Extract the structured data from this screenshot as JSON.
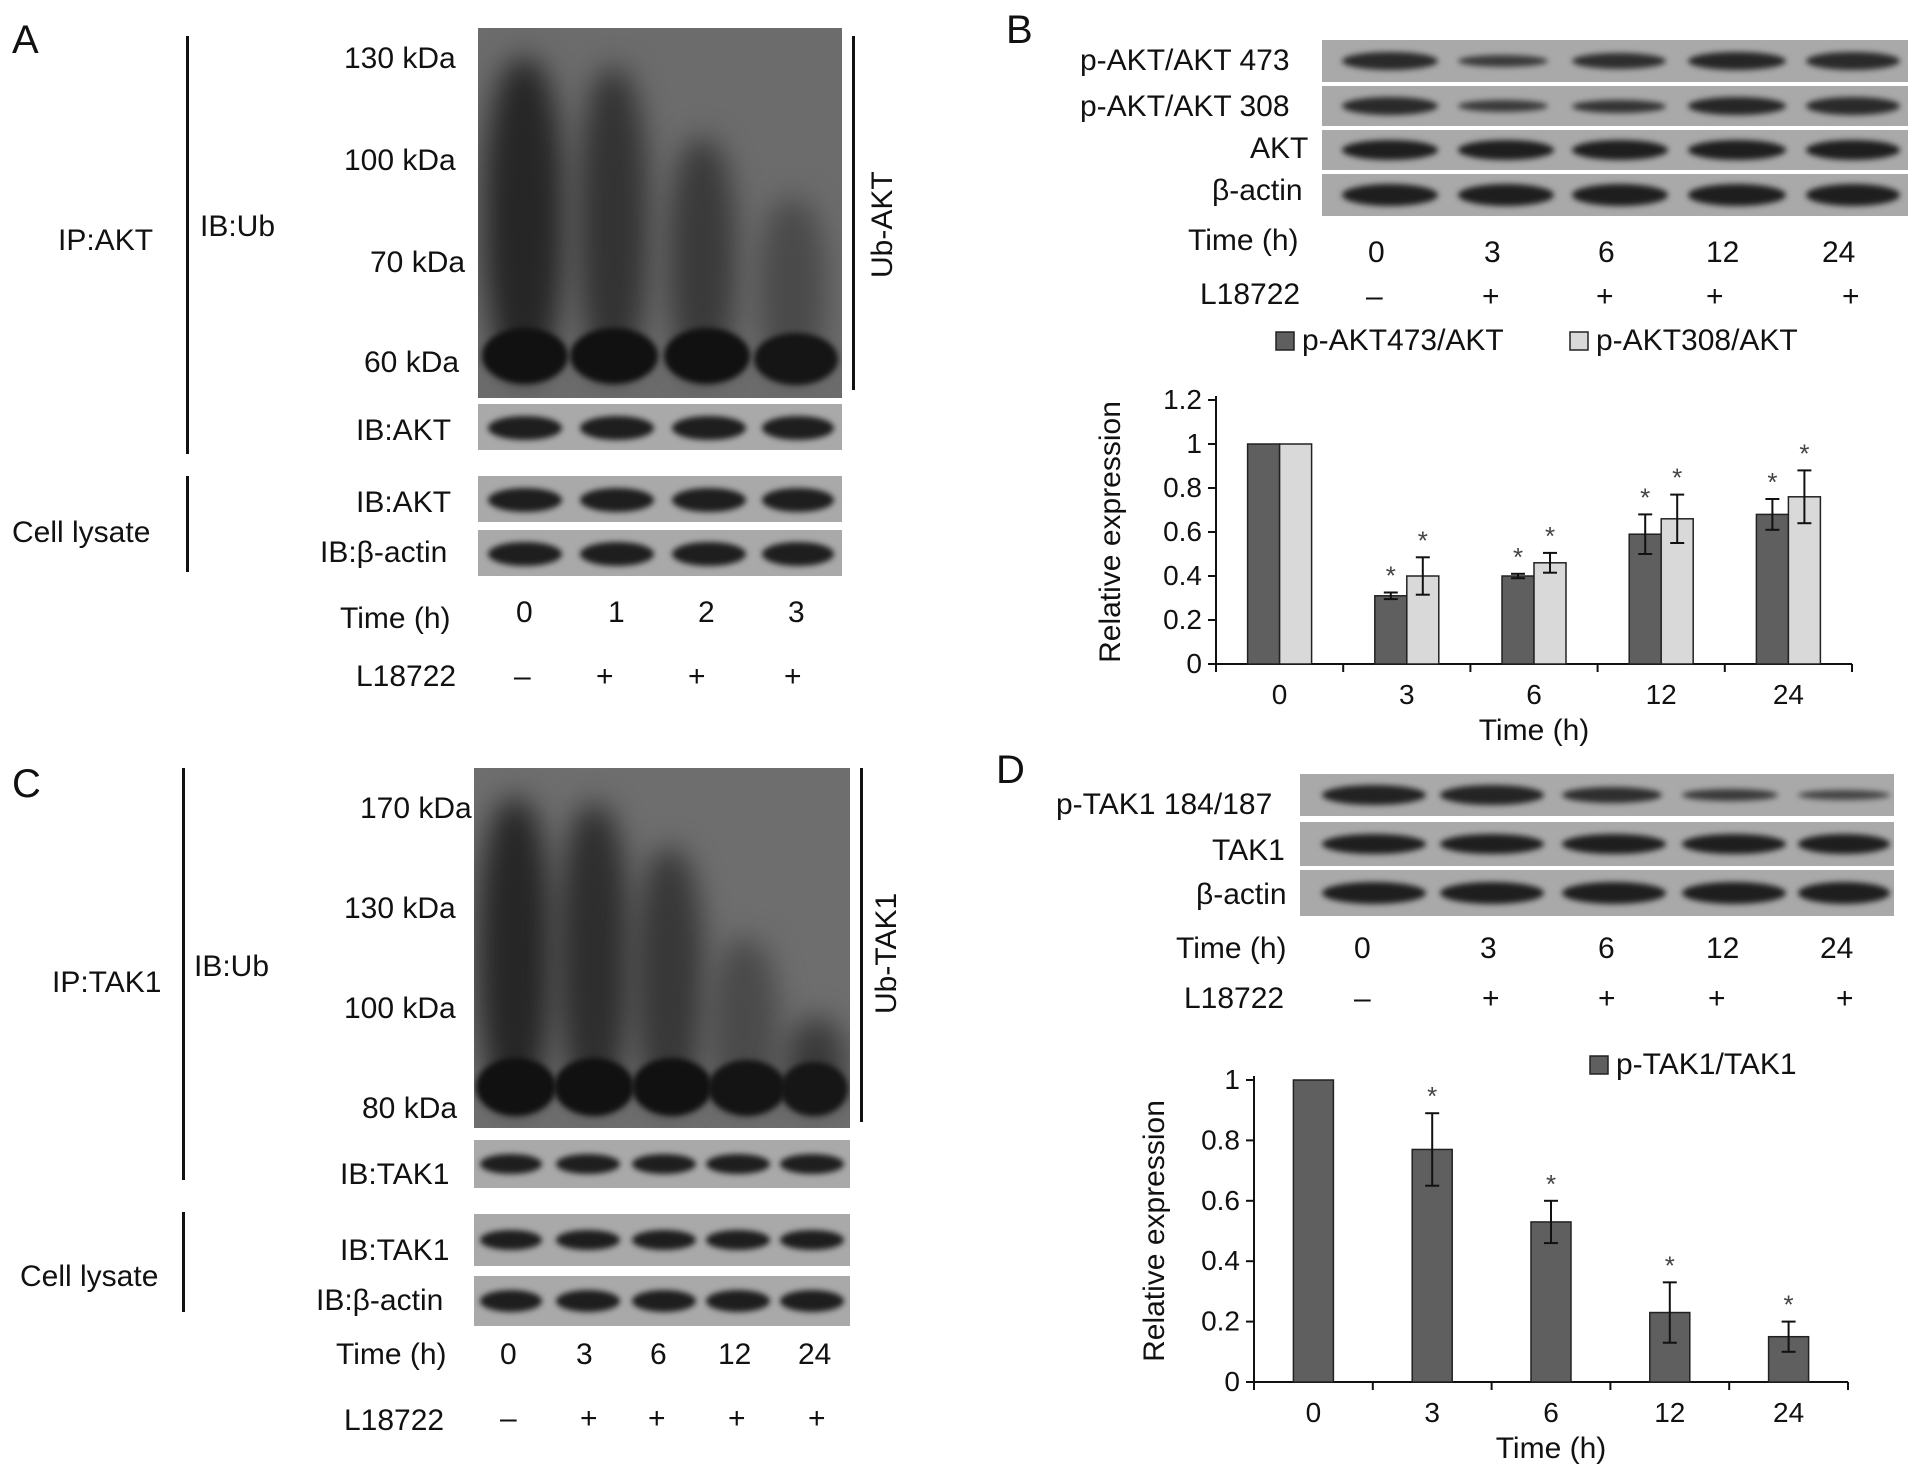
{
  "panels": {
    "A": {
      "letter": "A",
      "ip_label": "IP:AKT",
      "ib_ub_label": "IB:Ub",
      "ub_label": "Ub-AKT",
      "cell_lysate_label": "Cell lysate",
      "markers": [
        "130 kDa",
        "100 kDa",
        "70 kDa",
        "60 kDa"
      ],
      "blot_labels": [
        "IB:AKT",
        "IB:AKT",
        "IB:β-actin"
      ],
      "time_label": "Time (h)",
      "times": [
        "0",
        "1",
        "2",
        "3"
      ],
      "treatment_label": "L18722",
      "treatments": [
        "–",
        "+",
        "+",
        "+"
      ]
    },
    "B": {
      "letter": "B",
      "blot_labels": [
        "p-AKT/AKT 473",
        "p-AKT/AKT 308",
        "AKT",
        "β-actin"
      ],
      "time_label": "Time (h)",
      "times": [
        "0",
        "3",
        "6",
        "12",
        "24"
      ],
      "treatment_label": "L18722",
      "treatments": [
        "–",
        "+",
        "+",
        "+",
        "+"
      ]
    },
    "C": {
      "letter": "C",
      "ip_label": "IP:TAK1",
      "ib_ub_label": "IB:Ub",
      "ub_label": "Ub-TAK1",
      "cell_lysate_label": "Cell lysate",
      "markers": [
        "170 kDa",
        "130 kDa",
        "100 kDa",
        "80 kDa"
      ],
      "blot_labels": [
        "IB:TAK1",
        "IB:TAK1",
        "IB:β-actin"
      ],
      "time_label": "Time (h)",
      "times": [
        "0",
        "3",
        "6",
        "12",
        "24"
      ],
      "treatment_label": "L18722",
      "treatments": [
        "–",
        "+",
        "+",
        "+",
        "+"
      ]
    },
    "D": {
      "letter": "D",
      "blot_labels": [
        "p-TAK1 184/187",
        "TAK1",
        "β-actin"
      ],
      "time_label": "Time (h)",
      "times": [
        "0",
        "3",
        "6",
        "12",
        "24"
      ],
      "treatment_label": "L18722",
      "treatments": [
        "–",
        "+",
        "+",
        "+",
        "+"
      ]
    }
  },
  "colors": {
    "dark_bar": "#5f5f5f",
    "light_bar": "#d9d9d9",
    "blot_bg": "#a9a9a9",
    "band": "#1e1e1e"
  },
  "chart_data": [
    {
      "type": "bar",
      "title": "",
      "categories": [
        "0",
        "3",
        "6",
        "12",
        "24"
      ],
      "xlabel": "Time (h)",
      "ylabel": "Relative expression",
      "ylim": [
        0,
        1.2
      ],
      "yticks": [
        "0",
        "0.2",
        "0.4",
        "0.6",
        "0.8",
        "1",
        "1.2"
      ],
      "legend_position": "top",
      "significance_marker": "*",
      "series": [
        {
          "name": "p-AKT473/AKT",
          "values": [
            1.0,
            0.31,
            0.4,
            0.59,
            0.68
          ],
          "errors": [
            0,
            0.015,
            0.01,
            0.09,
            0.07
          ],
          "significant": [
            false,
            true,
            true,
            true,
            true
          ]
        },
        {
          "name": "p-AKT308/AKT",
          "values": [
            1.0,
            0.4,
            0.46,
            0.66,
            0.76
          ],
          "errors": [
            0,
            0.085,
            0.045,
            0.11,
            0.12
          ],
          "significant": [
            false,
            true,
            true,
            true,
            true
          ]
        }
      ]
    },
    {
      "type": "bar",
      "title": "",
      "categories": [
        "0",
        "3",
        "6",
        "12",
        "24"
      ],
      "xlabel": "Time (h)",
      "ylabel": "Relative expression",
      "ylim": [
        0,
        1.0
      ],
      "yticks": [
        "0",
        "0.2",
        "0.4",
        "0.6",
        "0.8",
        "1"
      ],
      "legend_position": "top-right",
      "significance_marker": "*",
      "series": [
        {
          "name": "p-TAK1/TAK1",
          "values": [
            1.0,
            0.77,
            0.53,
            0.23,
            0.15
          ],
          "errors": [
            0,
            0.12,
            0.07,
            0.1,
            0.05
          ],
          "significant": [
            false,
            true,
            true,
            true,
            true
          ]
        }
      ]
    }
  ]
}
